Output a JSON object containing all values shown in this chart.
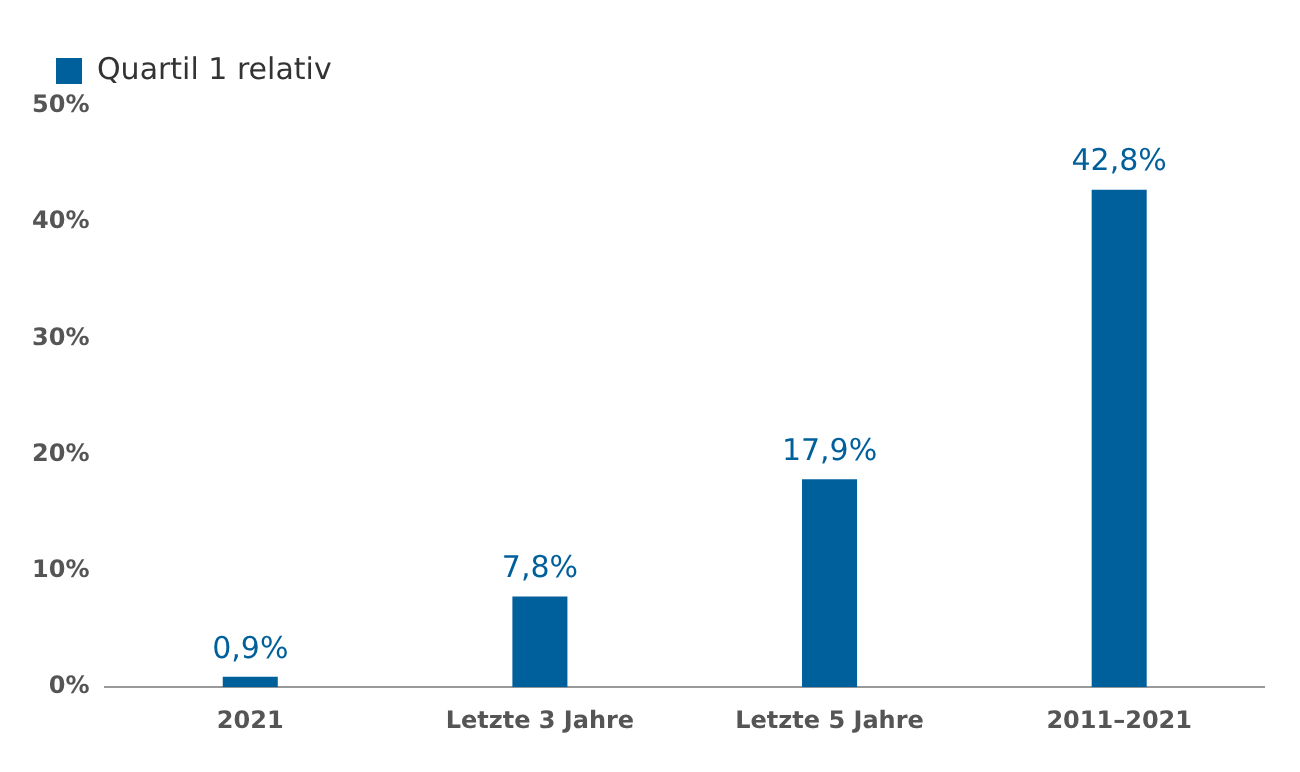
{
  "chart_data": {
    "type": "bar",
    "categories": [
      "2021",
      "Letzte 3 Jahre",
      "Letzte 5 Jahre",
      "2011–2021"
    ],
    "series": [
      {
        "name": "Quartil 1 relativ",
        "color": "#00609c",
        "values": [
          0.9,
          7.8,
          17.9,
          42.8
        ],
        "value_labels": [
          "0,9%",
          "7,8%",
          "17,9%",
          "42,8%"
        ]
      }
    ],
    "ylim": [
      0,
      50
    ],
    "yticks": [
      {
        "value": 0,
        "label": "0%"
      },
      {
        "value": 10,
        "label": "10%"
      },
      {
        "value": 20,
        "label": "20%"
      },
      {
        "value": 30,
        "label": "30%"
      },
      {
        "value": 40,
        "label": "40%"
      },
      {
        "value": 50,
        "label": "50%"
      }
    ],
    "grid": false,
    "legend": "top left"
  }
}
